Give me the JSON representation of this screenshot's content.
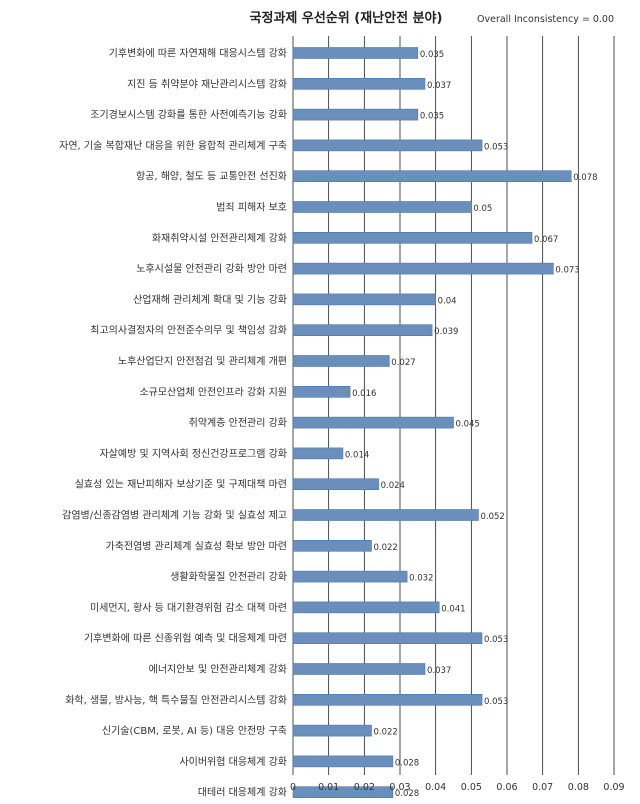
{
  "chart_data": {
    "type": "bar",
    "orientation": "horizontal",
    "title": "국정과제 우선순위 (재난안전 분야)",
    "subtitle": "Overall Inconsistency = 0.00",
    "categories": [
      "기후변화에 따른 자연재해 대응시스템 강화",
      "지진 등 취약분야 재난관리시스템 강화",
      "조기경보시스템 강화를 통한 사전예측기능 강화",
      "자연, 기술 복합재난 대응을 위한 융합적 관리체계 구축",
      "항공, 해양, 철도 등 교통안전 선진화",
      "범죄 피해자 보호",
      "화재취약시설 안전관리체계 강화",
      "노후시설물 안전관리 강화 방안 마련",
      "산업재해 관리체계 확대 및 기능 강화",
      "최고의사결정자의 안전준수의무 및 책임성 강화",
      "노후산업단지 안전점검 및 관리체계 개편",
      "소규모산업체 안전인프라 강화 지원",
      "취약계층 안전관리 강화",
      "자살예방 및 지역사회 정신건강프로그램 강화",
      "실효성 있는 재난피해자 보상기준 및 구제대책 마련",
      "감염병/신종감염병 관리체계 기능 강화 및 실효성 제고",
      "가축전염병 관리체계 실효성 확보 방안 마련",
      "생활화학물질 안전관리 강화",
      "미세먼지, 황사 등 대기환경위험 감소 대책 마련",
      "기후변화에 따른 신종위험 예측 및 대응체계 마련",
      "에너지안보 및 안전관리체계 강화",
      "화학, 생물, 방사능, 핵 특수물질 안전관리시스템 강화",
      "신기술(CBM, 로봇, AI 등) 대응 안전망 구축",
      "사이버위협 대응체계 강화",
      "대테러 대응체계 강화"
    ],
    "values": [
      0.035,
      0.037,
      0.035,
      0.053,
      0.078,
      0.05,
      0.067,
      0.073,
      0.04,
      0.039,
      0.027,
      0.016,
      0.045,
      0.014,
      0.024,
      0.052,
      0.022,
      0.032,
      0.041,
      0.053,
      0.037,
      0.053,
      0.022,
      0.028,
      0.028
    ],
    "value_labels": [
      "0.035",
      "0.037",
      "0.035",
      "0.053",
      "0.078",
      "0.05",
      "0.067",
      "0.073",
      "0.04",
      "0.039",
      "0.027",
      "0.016",
      "0.045",
      "0.014",
      "0.024",
      "0.052",
      "0.022",
      "0.032",
      "0.041",
      "0.053",
      "0.037",
      "0.053",
      "0.022",
      "0.028",
      "0.028"
    ],
    "x_ticks": [
      "0",
      "0.01",
      "0.02",
      "0.03",
      "0.04",
      "0.05",
      "0.06",
      "0.07",
      "0.08",
      "0.09"
    ],
    "xlim": [
      0,
      0.09
    ],
    "xlabel": "",
    "ylabel": "",
    "grid": "vertical",
    "legend": "none",
    "bar_color": "#6a8fbc",
    "bar_edge_color": "#4e76a6"
  }
}
